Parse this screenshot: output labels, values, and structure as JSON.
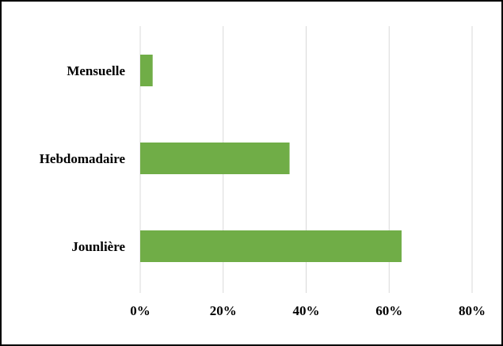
{
  "chart_data": {
    "type": "bar",
    "orientation": "horizontal",
    "title": "",
    "xlabel": "",
    "ylabel": "",
    "categories": [
      "Mensuelle",
      "Hebdomadaire",
      "Jounlière"
    ],
    "values": [
      0.03,
      0.36,
      0.63
    ],
    "xlim": [
      0,
      0.8
    ],
    "x_ticks": [
      "0%",
      "20%",
      "40%",
      "60%",
      "80%"
    ],
    "x_tick_values": [
      0,
      0.2,
      0.4,
      0.6,
      0.8
    ],
    "grid": true,
    "legend": "none",
    "bar_color": "#70AD47",
    "grid_color": "#D9D9D9"
  }
}
